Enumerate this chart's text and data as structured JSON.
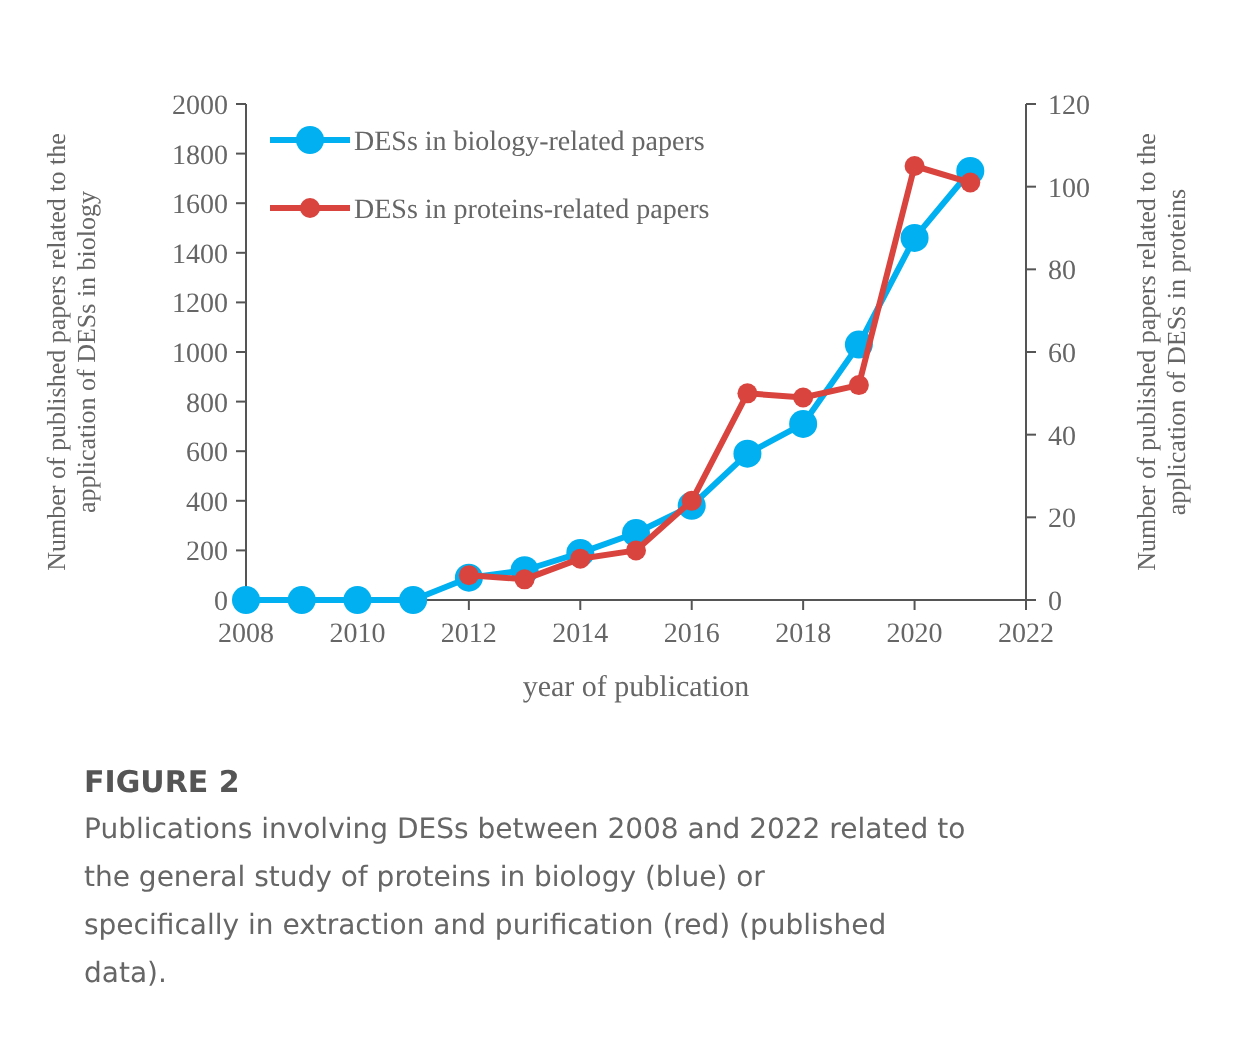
{
  "chart_data": {
    "type": "line",
    "title": "FIGURE 2",
    "subtitle": "Publications involving DESs between 2008 and 2022 related to the general study of proteins in biology (blue) or specifically in extraction and purification (red) (published data).",
    "xlabel": "year of publication",
    "ylabel": "Number of published papers related to the application of DESs in biology",
    "y2label": "Number of published papers related to the application of DESs in proteins",
    "x": [
      2008,
      2009,
      2010,
      2011,
      2012,
      2013,
      2014,
      2015,
      2016,
      2017,
      2018,
      2019,
      2020,
      2021
    ],
    "series": [
      {
        "name": "DESs in biology-related papers",
        "color": "#00b0f0",
        "values": [
          0,
          0,
          0,
          0,
          90,
          120,
          190,
          270,
          380,
          590,
          710,
          1030,
          1460,
          1730
        ]
      },
      {
        "name": "DESs in proteins-related papers",
        "color": "#d9443f",
        "axis": "y2",
        "values": [
          null,
          null,
          null,
          null,
          6,
          5,
          10,
          12,
          24,
          50,
          49,
          52,
          105,
          101
        ]
      }
    ],
    "xlim": [
      2008,
      2022
    ],
    "xticks": [
      2008,
      2010,
      2012,
      2014,
      2016,
      2018,
      2020,
      2022
    ],
    "ylim": [
      0,
      2000
    ],
    "yticks": [
      0,
      200,
      400,
      600,
      800,
      1000,
      1200,
      1400,
      1600,
      1800,
      2000
    ],
    "y2lim": [
      0,
      120
    ],
    "y2ticks": [
      0,
      20,
      40,
      60,
      80,
      100,
      120
    ],
    "grid": false,
    "legend": "top left",
    "marker": "circle",
    "line_style": "solid"
  }
}
